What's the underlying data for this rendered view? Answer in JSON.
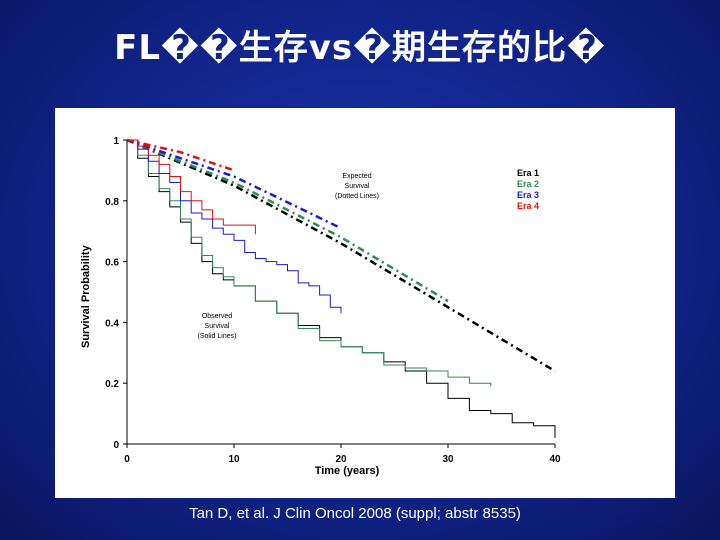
{
  "slide": {
    "title": "FL��生存vs�期生存的比�",
    "citation": "Tan D, et al. J Clin Oncol 2008 (suppl; abstr 8535)"
  },
  "colors": {
    "background": "#12288f",
    "era1": "#000000",
    "era2": "#2e8b57",
    "era3": "#1a1ad0",
    "era4": "#e01010"
  },
  "chart_data": {
    "type": "line",
    "xlabel": "Time (years)",
    "ylabel": "Survival Probability",
    "xlim": [
      0,
      40
    ],
    "ylim": [
      0,
      1
    ],
    "x_ticks": [
      "0",
      "10",
      "20",
      "30",
      "40"
    ],
    "y_ticks": [
      "0",
      "0.2",
      "0.4",
      "0.6",
      "0.8",
      "1"
    ],
    "legend_position": "top-right",
    "annotations": {
      "expected": [
        "Expected",
        "Survival",
        "(Dotted Lines)"
      ],
      "observed": [
        "Observed",
        "Survival",
        "(Solid Lines)"
      ]
    },
    "observed_series": [
      {
        "name": "Era 1",
        "color": "#000000",
        "x": [
          0,
          1,
          2,
          3,
          4,
          5,
          6,
          7,
          8,
          9,
          10,
          12,
          14,
          16,
          18,
          20,
          22,
          24,
          26,
          28,
          30,
          32,
          34,
          36,
          38,
          40
        ],
        "y": [
          1,
          0.94,
          0.88,
          0.83,
          0.78,
          0.73,
          0.66,
          0.6,
          0.56,
          0.54,
          0.52,
          0.47,
          0.43,
          0.39,
          0.35,
          0.32,
          0.3,
          0.27,
          0.24,
          0.2,
          0.15,
          0.11,
          0.1,
          0.07,
          0.06,
          0.02
        ]
      },
      {
        "name": "Era 2",
        "color": "#2e8b57",
        "x": [
          0,
          1,
          2,
          3,
          4,
          5,
          6,
          7,
          8,
          9,
          10,
          12,
          14,
          16,
          18,
          20,
          22,
          24,
          26,
          28,
          30,
          32,
          34
        ],
        "y": [
          1,
          0.95,
          0.89,
          0.84,
          0.8,
          0.74,
          0.68,
          0.62,
          0.58,
          0.55,
          0.52,
          0.47,
          0.43,
          0.38,
          0.34,
          0.32,
          0.3,
          0.26,
          0.25,
          0.24,
          0.22,
          0.2,
          0.19
        ]
      },
      {
        "name": "Era 3",
        "color": "#1a1ad0",
        "x": [
          0,
          1,
          2,
          3,
          4,
          5,
          6,
          7,
          8,
          9,
          10,
          11,
          12,
          13,
          14,
          15,
          16,
          17,
          18,
          19,
          20
        ],
        "y": [
          1,
          0.97,
          0.93,
          0.89,
          0.86,
          0.8,
          0.76,
          0.74,
          0.71,
          0.69,
          0.67,
          0.63,
          0.61,
          0.6,
          0.59,
          0.57,
          0.53,
          0.52,
          0.49,
          0.45,
          0.43
        ]
      },
      {
        "name": "Era 4",
        "color": "#e01010",
        "x": [
          0,
          1,
          2,
          3,
          4,
          5,
          6,
          7,
          8,
          9,
          10,
          11,
          12
        ],
        "y": [
          1,
          0.98,
          0.95,
          0.92,
          0.88,
          0.83,
          0.8,
          0.77,
          0.74,
          0.72,
          0.72,
          0.72,
          0.69
        ]
      }
    ],
    "expected_series": [
      {
        "name": "Era 1",
        "color": "#000000",
        "x": [
          0,
          10,
          20,
          30,
          40
        ],
        "y": [
          1,
          0.85,
          0.66,
          0.45,
          0.24
        ]
      },
      {
        "name": "Era 2",
        "color": "#2e8b57",
        "x": [
          0,
          10,
          20,
          30
        ],
        "y": [
          1,
          0.86,
          0.68,
          0.47
        ]
      },
      {
        "name": "Era 3",
        "color": "#1a1ad0",
        "x": [
          0,
          10,
          20
        ],
        "y": [
          1,
          0.88,
          0.71
        ]
      },
      {
        "name": "Era 4",
        "color": "#e01010",
        "x": [
          0,
          5,
          10
        ],
        "y": [
          1,
          0.96,
          0.9
        ]
      }
    ]
  }
}
